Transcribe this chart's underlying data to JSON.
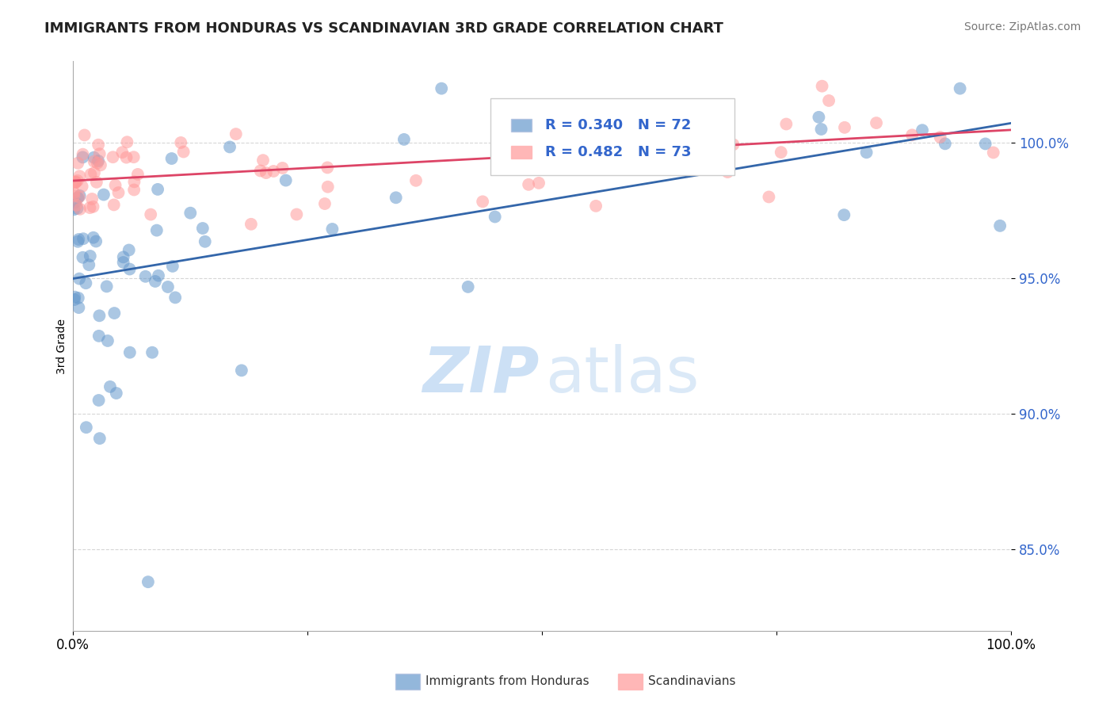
{
  "title": "IMMIGRANTS FROM HONDURAS VS SCANDINAVIAN 3RD GRADE CORRELATION CHART",
  "source": "Source: ZipAtlas.com",
  "ylabel": "3rd Grade",
  "legend_labels": [
    "Immigrants from Honduras",
    "Scandinavians"
  ],
  "R_blue": 0.34,
  "N_blue": 72,
  "R_pink": 0.482,
  "N_pink": 73,
  "blue_color": "#6699CC",
  "pink_color": "#FF9999",
  "trend_blue": "#3366AA",
  "trend_pink": "#DD4466",
  "xlim": [
    0.0,
    1.0
  ],
  "ylim": [
    0.82,
    1.03
  ],
  "yticks": [
    0.85,
    0.9,
    0.95,
    1.0
  ],
  "ytick_labels": [
    "85.0%",
    "90.0%",
    "95.0%",
    "100.0%"
  ]
}
